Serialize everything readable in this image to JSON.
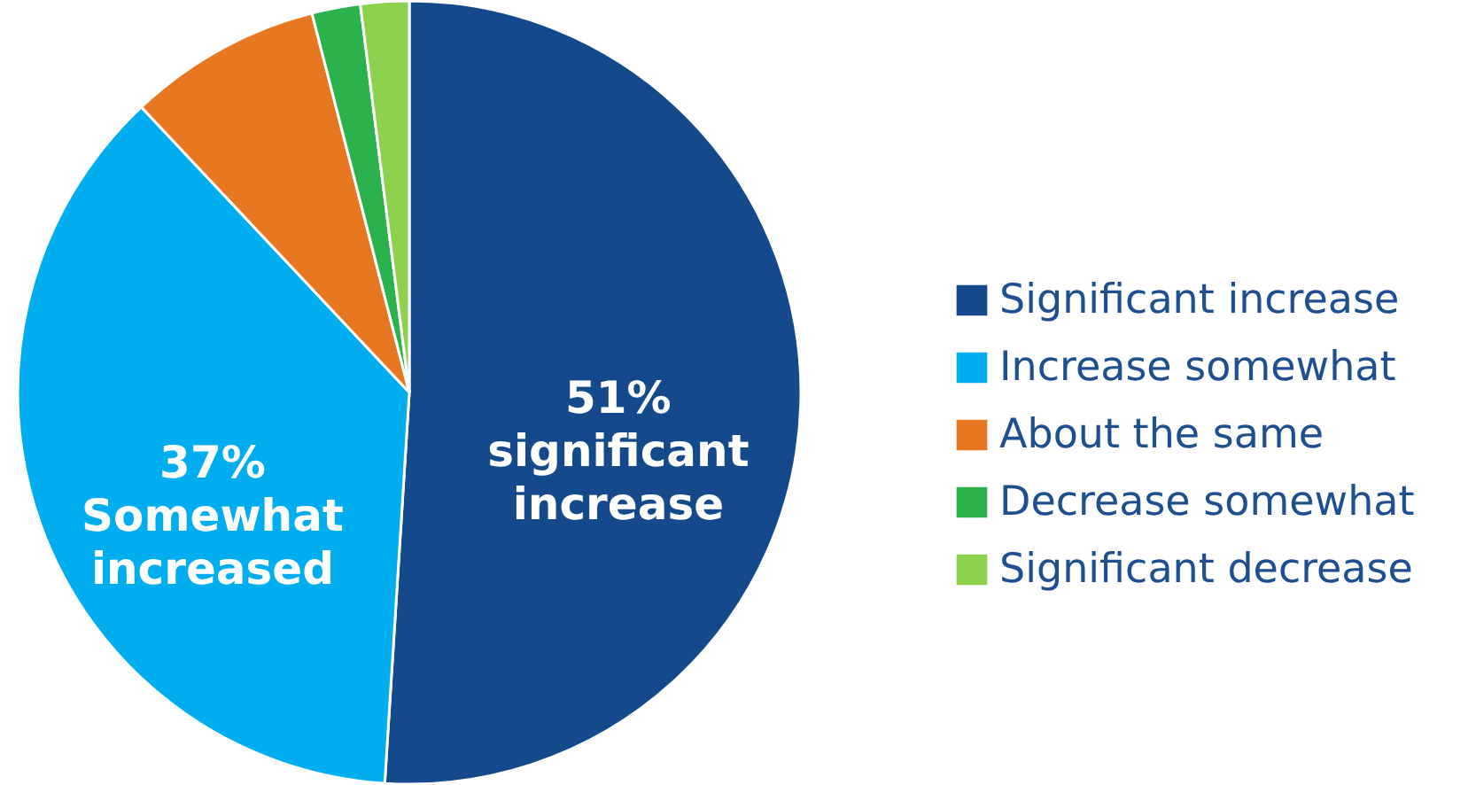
{
  "chart_data": {
    "type": "pie",
    "categories": [
      "Significant increase",
      "Increase somewhat",
      "About the same",
      "Decrease somewhat",
      "Significant decrease"
    ],
    "values": [
      51,
      37,
      8,
      2,
      2
    ],
    "colors": [
      "#144a8c",
      "#00aeef",
      "#e87722",
      "#2bb24c",
      "#8ed14f"
    ],
    "value_labels": [
      "51%\nsignificant\nincrease",
      "37%\nSomewhat\nincreased",
      null,
      null,
      null
    ],
    "legend": "right"
  }
}
